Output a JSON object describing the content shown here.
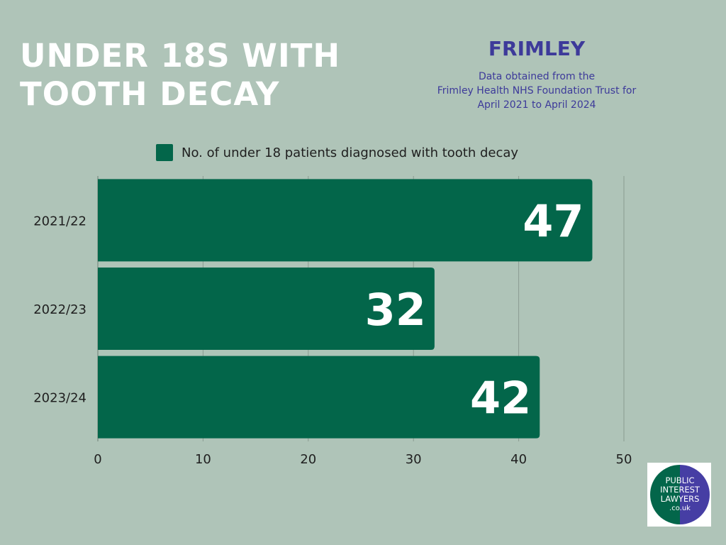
{
  "header": {
    "title_line1": "UNDER 18S WITH",
    "title_line2": "TOOTH DECAY",
    "brand": "FRIMLEY",
    "note_line1": "Data obtained from the",
    "note_line2": "Frimley Health NHS Foundation Trust for",
    "note_line3": "April 2021 to April 2024"
  },
  "logo": {
    "line1": "PUBLIC",
    "line2": "INTEREST",
    "line3": "LAWYERS",
    "line4": ".co.uk"
  },
  "colors": {
    "background": "#afc4b8",
    "bar": "#03664a",
    "title": "#ffffff",
    "accent": "#3d3a9a"
  },
  "chart_data": {
    "type": "bar",
    "orientation": "horizontal",
    "categories": [
      "2021/22",
      "2022/23",
      "2023/24"
    ],
    "series": [
      {
        "name": "No. of under 18 patients diagnosed with tooth decay",
        "values": [
          47,
          32,
          42
        ]
      }
    ],
    "xlim": [
      0,
      50
    ],
    "xticks": [
      "0",
      "10",
      "20",
      "30",
      "40",
      "50"
    ],
    "grid": true,
    "legend": "top"
  }
}
